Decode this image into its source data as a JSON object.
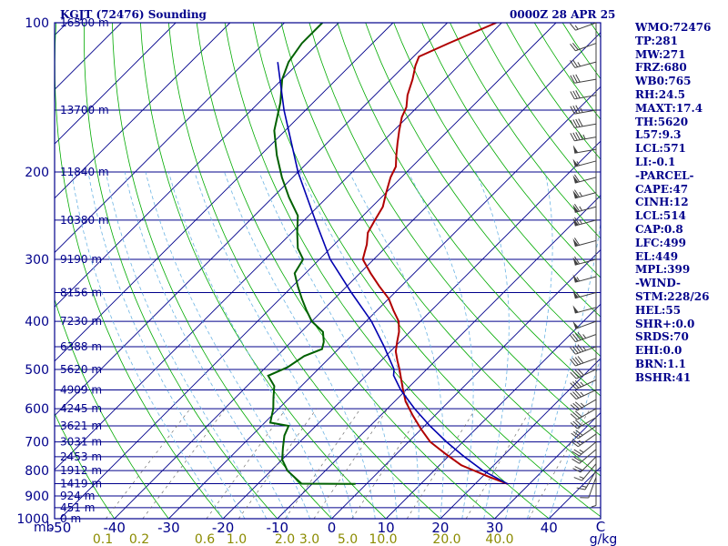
{
  "header": {
    "title": "KGJT (72476) Sounding",
    "datetime": "0000Z 28 APR 25"
  },
  "indices": [
    "WMO:72476",
    "TP:281",
    "MW:271",
    "FRZ:680",
    "WB0:765",
    "RH:24.5",
    "MAXT:17.4",
    "TH:5620",
    "L57:9.3",
    "LCL:571",
    "LI:-0.1",
    "-PARCEL-",
    "CAPE:47",
    "CINH:12",
    "LCL:514",
    "CAP:0.8",
    "LFC:499",
    "EL:449",
    "MPL:399",
    "-WIND-",
    "STM:228/26",
    "HEL:55",
    "SHR+:0.0",
    "SRDS:70",
    "EHI:0.0",
    "BRN:1.1",
    "BSHR:41"
  ],
  "colors": {
    "border": "#00008b",
    "isobar": "#00008b",
    "isotherm": "#00008b",
    "dry_adiabat": "#00aa00",
    "moist_adiabat": "#6cb4e4",
    "mixing_ratio": "#707070",
    "temperature": "#b00000",
    "dewpoint": "#006000",
    "parcel": "#0000b0",
    "temp_labels": "#00008b",
    "mixing_labels": "#8b8b00",
    "wind_barbs": "#404040"
  },
  "chart_data": {
    "type": "skew-T log-P sounding",
    "title": "KGJT (72476) Sounding",
    "xlabel_unit": "C",
    "mixing_unit": "g/kg",
    "p_unit": "mb",
    "pressure_range_mb": [
      1000,
      100
    ],
    "temperature_range_C": [
      -50,
      50
    ],
    "pressure_levels": [
      {
        "p": 100,
        "label": "100",
        "height": "16500 m"
      },
      {
        "p": 150,
        "label": "",
        "height": "13700 m"
      },
      {
        "p": 200,
        "label": "200",
        "height": "11840 m"
      },
      {
        "p": 250,
        "label": "",
        "height": "10380 m"
      },
      {
        "p": 300,
        "label": "300",
        "height": "9190 m"
      },
      {
        "p": 350,
        "label": "",
        "height": "8156 m"
      },
      {
        "p": 400,
        "label": "400",
        "height": "7230 m"
      },
      {
        "p": 450,
        "label": "",
        "height": "6388 m"
      },
      {
        "p": 500,
        "label": "500",
        "height": "5620 m"
      },
      {
        "p": 550,
        "label": "",
        "height": "4909 m"
      },
      {
        "p": 600,
        "label": "600",
        "height": "4245 m"
      },
      {
        "p": 650,
        "label": "",
        "height": "3621 m"
      },
      {
        "p": 700,
        "label": "700",
        "height": "3031 m"
      },
      {
        "p": 750,
        "label": "",
        "height": "2453 m"
      },
      {
        "p": 800,
        "label": "800",
        "height": "1912 m"
      },
      {
        "p": 850,
        "label": "",
        "height": "1419 m"
      },
      {
        "p": 900,
        "label": "900",
        "height": "924 m"
      },
      {
        "p": 950,
        "label": "",
        "height": "451 m"
      },
      {
        "p": 1000,
        "label": "1000",
        "height": "0 m"
      }
    ],
    "temperature_ticks": [
      {
        "t": -50,
        "label": "-50"
      },
      {
        "t": -40,
        "label": "-40"
      },
      {
        "t": -30,
        "label": "-30"
      },
      {
        "t": -20,
        "label": "-20"
      },
      {
        "t": -10,
        "label": "-10"
      },
      {
        "t": 0,
        "label": "0"
      },
      {
        "t": 10,
        "label": "10"
      },
      {
        "t": 20,
        "label": "20"
      },
      {
        "t": 30,
        "label": "30"
      },
      {
        "t": 40,
        "label": "40"
      }
    ],
    "mixing_ratio_labels": [
      "0.1",
      "0.2",
      "0.6",
      "1.0",
      "2.0",
      "3.0",
      "5.0",
      "10.0",
      "20.0",
      "40.0"
    ],
    "mixing_ratio_values": [
      0.1,
      0.2,
      0.6,
      1.0,
      2.0,
      3.0,
      5.0,
      10.0,
      20.0,
      40.0
    ],
    "temperature_profile": [
      {
        "p": 851,
        "t": 26
      },
      {
        "p": 822,
        "t": 21
      },
      {
        "p": 780,
        "t": 14
      },
      {
        "p": 740,
        "t": 9
      },
      {
        "p": 700,
        "t": 4
      },
      {
        "p": 660,
        "t": 0
      },
      {
        "p": 620,
        "t": -4
      },
      {
        "p": 580,
        "t": -8
      },
      {
        "p": 545,
        "t": -11
      },
      {
        "p": 500,
        "t": -15
      },
      {
        "p": 480,
        "t": -17
      },
      {
        "p": 460,
        "t": -19
      },
      {
        "p": 440,
        "t": -20.5
      },
      {
        "p": 420,
        "t": -22
      },
      {
        "p": 400,
        "t": -24
      },
      {
        "p": 380,
        "t": -27
      },
      {
        "p": 360,
        "t": -30
      },
      {
        "p": 340,
        "t": -34
      },
      {
        "p": 320,
        "t": -38
      },
      {
        "p": 300,
        "t": -42
      },
      {
        "p": 290,
        "t": -43
      },
      {
        "p": 280,
        "t": -44
      },
      {
        "p": 265,
        "t": -46
      },
      {
        "p": 250,
        "t": -47
      },
      {
        "p": 235,
        "t": -48
      },
      {
        "p": 220,
        "t": -50
      },
      {
        "p": 205,
        "t": -52
      },
      {
        "p": 195,
        "t": -53
      },
      {
        "p": 185,
        "t": -55
      },
      {
        "p": 175,
        "t": -57
      },
      {
        "p": 165,
        "t": -59
      },
      {
        "p": 155,
        "t": -61
      },
      {
        "p": 148,
        "t": -62
      },
      {
        "p": 140,
        "t": -64
      },
      {
        "p": 130,
        "t": -66
      },
      {
        "p": 122,
        "t": -68
      },
      {
        "p": 117,
        "t": -69
      },
      {
        "p": 110,
        "t": -66
      },
      {
        "p": 100,
        "t": -61
      }
    ],
    "dewpoint_profile": [
      {
        "p": 851,
        "t": -2
      },
      {
        "p": 850,
        "t": -12
      },
      {
        "p": 800,
        "t": -17
      },
      {
        "p": 760,
        "t": -20
      },
      {
        "p": 720,
        "t": -22
      },
      {
        "p": 680,
        "t": -24
      },
      {
        "p": 650,
        "t": -25
      },
      {
        "p": 640,
        "t": -29
      },
      {
        "p": 600,
        "t": -31
      },
      {
        "p": 570,
        "t": -33
      },
      {
        "p": 540,
        "t": -35
      },
      {
        "p": 515,
        "t": -38
      },
      {
        "p": 495,
        "t": -36
      },
      {
        "p": 470,
        "t": -35
      },
      {
        "p": 455,
        "t": -33
      },
      {
        "p": 440,
        "t": -34
      },
      {
        "p": 420,
        "t": -36
      },
      {
        "p": 400,
        "t": -40
      },
      {
        "p": 380,
        "t": -43
      },
      {
        "p": 360,
        "t": -46
      },
      {
        "p": 340,
        "t": -49
      },
      {
        "p": 320,
        "t": -52
      },
      {
        "p": 300,
        "t": -53
      },
      {
        "p": 285,
        "t": -56
      },
      {
        "p": 265,
        "t": -59
      },
      {
        "p": 245,
        "t": -62
      },
      {
        "p": 225,
        "t": -67
      },
      {
        "p": 205,
        "t": -72
      },
      {
        "p": 185,
        "t": -77
      },
      {
        "p": 165,
        "t": -82
      },
      {
        "p": 145,
        "t": -86
      },
      {
        "p": 130,
        "t": -90
      },
      {
        "p": 120,
        "t": -92
      },
      {
        "p": 110,
        "t": -93
      },
      {
        "p": 100,
        "t": -93
      }
    ],
    "parcel_profile": [
      {
        "p": 851,
        "t": 26
      },
      {
        "p": 800,
        "t": 19
      },
      {
        "p": 750,
        "t": 13
      },
      {
        "p": 700,
        "t": 7
      },
      {
        "p": 650,
        "t": 1
      },
      {
        "p": 600,
        "t": -5
      },
      {
        "p": 550,
        "t": -11
      },
      {
        "p": 514,
        "t": -15
      },
      {
        "p": 500,
        "t": -16
      },
      {
        "p": 450,
        "t": -22
      },
      {
        "p": 400,
        "t": -29
      },
      {
        "p": 350,
        "t": -38
      },
      {
        "p": 300,
        "t": -48
      },
      {
        "p": 250,
        "t": -58
      },
      {
        "p": 200,
        "t": -70
      },
      {
        "p": 150,
        "t": -84
      },
      {
        "p": 120,
        "t": -94
      }
    ],
    "wind_profile": [
      {
        "p": 850,
        "dir": 180,
        "spd": 5
      },
      {
        "p": 825,
        "dir": 200,
        "spd": 10
      },
      {
        "p": 800,
        "dir": 210,
        "spd": 15
      },
      {
        "p": 775,
        "dir": 220,
        "spd": 15
      },
      {
        "p": 750,
        "dir": 225,
        "spd": 20
      },
      {
        "p": 725,
        "dir": 230,
        "spd": 20
      },
      {
        "p": 700,
        "dir": 230,
        "spd": 25
      },
      {
        "p": 675,
        "dir": 235,
        "spd": 25
      },
      {
        "p": 650,
        "dir": 235,
        "spd": 30
      },
      {
        "p": 625,
        "dir": 240,
        "spd": 30
      },
      {
        "p": 600,
        "dir": 240,
        "spd": 30
      },
      {
        "p": 575,
        "dir": 240,
        "spd": 35
      },
      {
        "p": 550,
        "dir": 245,
        "spd": 35
      },
      {
        "p": 525,
        "dir": 245,
        "spd": 35
      },
      {
        "p": 500,
        "dir": 245,
        "spd": 40
      },
      {
        "p": 475,
        "dir": 250,
        "spd": 40
      },
      {
        "p": 450,
        "dir": 250,
        "spd": 45
      },
      {
        "p": 425,
        "dir": 250,
        "spd": 45
      },
      {
        "p": 400,
        "dir": 250,
        "spd": 50
      },
      {
        "p": 375,
        "dir": 255,
        "spd": 50
      },
      {
        "p": 350,
        "dir": 255,
        "spd": 55
      },
      {
        "p": 325,
        "dir": 255,
        "spd": 55
      },
      {
        "p": 300,
        "dir": 255,
        "spd": 60
      },
      {
        "p": 275,
        "dir": 255,
        "spd": 60
      },
      {
        "p": 250,
        "dir": 255,
        "spd": 65
      },
      {
        "p": 235,
        "dir": 255,
        "spd": 65
      },
      {
        "p": 220,
        "dir": 255,
        "spd": 65
      },
      {
        "p": 205,
        "dir": 255,
        "spd": 60
      },
      {
        "p": 190,
        "dir": 255,
        "spd": 55
      },
      {
        "p": 180,
        "dir": 260,
        "spd": 50
      },
      {
        "p": 170,
        "dir": 260,
        "spd": 45
      },
      {
        "p": 160,
        "dir": 260,
        "spd": 40
      },
      {
        "p": 150,
        "dir": 260,
        "spd": 35
      },
      {
        "p": 140,
        "dir": 260,
        "spd": 30
      },
      {
        "p": 130,
        "dir": 260,
        "spd": 30
      },
      {
        "p": 120,
        "dir": 255,
        "spd": 25
      },
      {
        "p": 110,
        "dir": 250,
        "spd": 20
      },
      {
        "p": 100,
        "dir": 250,
        "spd": 15
      }
    ],
    "grid": true
  }
}
